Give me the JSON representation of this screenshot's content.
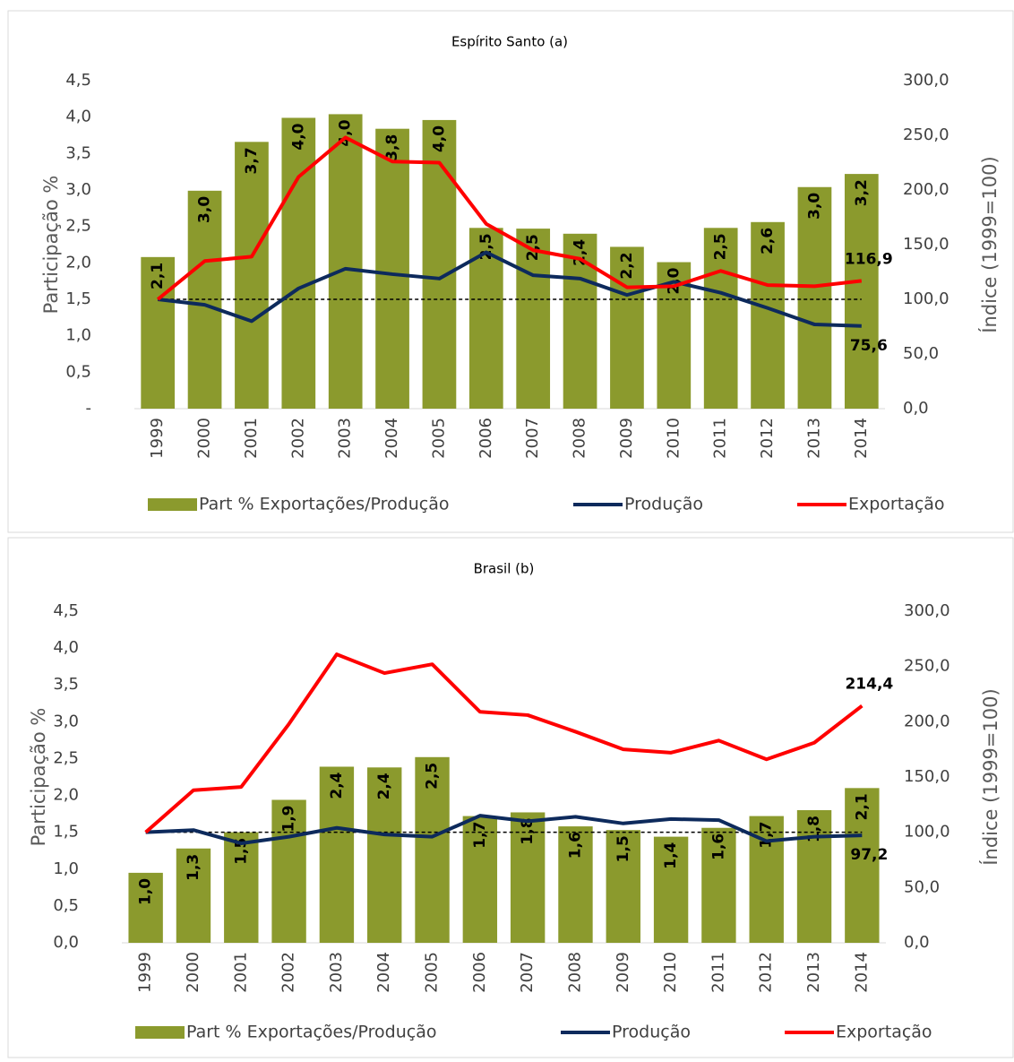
{
  "chart_data": [
    {
      "type": "bar_line",
      "title": "Espírito Santo (a)",
      "y_label": "Participação %",
      "y2_label": "Índice (1999=100)",
      "categories": [
        "1999",
        "2000",
        "2001",
        "2002",
        "2003",
        "2004",
        "2005",
        "2006",
        "2007",
        "2008",
        "2009",
        "2010",
        "2011",
        "2012",
        "2013",
        "2014"
      ],
      "series": [
        {
          "name": "Part % Exportações/Produção",
          "kind": "bar",
          "color": "#8b9a2d",
          "values": [
            2.08,
            2.99,
            3.66,
            3.99,
            4.04,
            3.84,
            3.96,
            2.48,
            2.47,
            2.4,
            2.22,
            2.01,
            2.48,
            2.56,
            3.04,
            3.22
          ],
          "value_labels": [
            "2,1",
            "3,0",
            "3,7",
            "4,0",
            "4,0",
            "3,8",
            "4,0",
            "2,5",
            "2,5",
            "2,4",
            "2,2",
            "2,0",
            "2,5",
            "2,6",
            "3,0",
            "3,2"
          ]
        },
        {
          "name": "Produção",
          "kind": "line",
          "axis": "y2",
          "color": "#0d2a5c",
          "values": [
            100,
            95,
            80,
            110,
            128,
            123,
            119,
            143,
            122,
            119,
            104,
            116,
            106,
            92,
            77,
            75.6
          ],
          "value_labels": [
            null,
            null,
            null,
            null,
            null,
            null,
            null,
            null,
            null,
            null,
            null,
            null,
            null,
            null,
            null,
            "75,6"
          ]
        },
        {
          "name": "Exportação",
          "kind": "line",
          "axis": "y2",
          "color": "#ff0000",
          "values": [
            100,
            135,
            139,
            212,
            248,
            226,
            225,
            169,
            145,
            137,
            111,
            112,
            126,
            113,
            112,
            116.9
          ],
          "value_labels": [
            null,
            null,
            null,
            null,
            null,
            null,
            null,
            null,
            null,
            null,
            null,
            null,
            null,
            null,
            null,
            "116,9"
          ]
        }
      ],
      "reference_line": {
        "axis": "y2",
        "value": 100,
        "style": "dashed"
      },
      "ylim": [
        0,
        4.5
      ],
      "yticks": [
        {
          "value": 0,
          "label": "-"
        },
        {
          "value": 0.5,
          "label": "0,5"
        },
        {
          "value": 1,
          "label": "1,0"
        },
        {
          "value": 1.5,
          "label": "1,5"
        },
        {
          "value": 2,
          "label": "2,0"
        },
        {
          "value": 2.5,
          "label": "2,5"
        },
        {
          "value": 3,
          "label": "3,0"
        },
        {
          "value": 3.5,
          "label": "3,5"
        },
        {
          "value": 4,
          "label": "4,0"
        },
        {
          "value": 4.5,
          "label": "4,5"
        }
      ],
      "y2lim": [
        0,
        300
      ],
      "y2ticks": [
        {
          "value": 0,
          "label": "0,0"
        },
        {
          "value": 50,
          "label": "50,0"
        },
        {
          "value": 100,
          "label": "100,0"
        },
        {
          "value": 150,
          "label": "150,0"
        },
        {
          "value": 200,
          "label": "200,0"
        },
        {
          "value": 250,
          "label": "250,0"
        },
        {
          "value": 300,
          "label": "300,0"
        }
      ],
      "legend": "bottom"
    },
    {
      "type": "bar_line",
      "title": "Brasil (b)",
      "y_label": "Participação %",
      "y2_label": "Índice (1999=100)",
      "categories": [
        "1999",
        "2000",
        "2001",
        "2002",
        "2003",
        "2004",
        "2005",
        "2006",
        "2007",
        "2008",
        "2009",
        "2010",
        "2011",
        "2012",
        "2013",
        "2014"
      ],
      "series": [
        {
          "name": "Part % Exportações/Produção",
          "kind": "bar",
          "color": "#8b9a2d",
          "values": [
            0.95,
            1.28,
            1.5,
            1.94,
            2.39,
            2.38,
            2.52,
            1.72,
            1.77,
            1.58,
            1.53,
            1.44,
            1.56,
            1.72,
            1.8,
            2.1
          ],
          "value_labels": [
            "1,0",
            "1,3",
            "1,5",
            "1,9",
            "2,4",
            "2,4",
            "2,5",
            "1,7",
            "1,8",
            "1,6",
            "1,5",
            "1,4",
            "1,6",
            "1,7",
            "1,8",
            "2,1"
          ]
        },
        {
          "name": "Produção",
          "kind": "line",
          "axis": "y2",
          "color": "#0d2a5c",
          "values": [
            100,
            102,
            90,
            96,
            104,
            98,
            96,
            115,
            110,
            114,
            108,
            112,
            111,
            92,
            96,
            97.2
          ],
          "value_labels": [
            null,
            null,
            null,
            null,
            null,
            null,
            null,
            null,
            null,
            null,
            null,
            null,
            null,
            null,
            null,
            "97,2"
          ]
        },
        {
          "name": "Exportação",
          "kind": "line",
          "axis": "y2",
          "color": "#ff0000",
          "values": [
            100,
            138,
            141,
            198,
            261,
            244,
            252,
            209,
            206,
            191,
            175,
            172,
            183,
            166,
            181,
            214.4
          ],
          "value_labels": [
            null,
            null,
            null,
            null,
            null,
            null,
            null,
            null,
            null,
            null,
            null,
            null,
            null,
            null,
            null,
            "214,4"
          ]
        }
      ],
      "reference_line": {
        "axis": "y2",
        "value": 100,
        "style": "dashed"
      },
      "ylim": [
        0,
        4.5
      ],
      "yticks": [
        {
          "value": 0,
          "label": "0,0"
        },
        {
          "value": 0.5,
          "label": "0,5"
        },
        {
          "value": 1,
          "label": "1,0"
        },
        {
          "value": 1.5,
          "label": "1,5"
        },
        {
          "value": 2,
          "label": "2,0"
        },
        {
          "value": 2.5,
          "label": "2,5"
        },
        {
          "value": 3,
          "label": "3,0"
        },
        {
          "value": 3.5,
          "label": "3,5"
        },
        {
          "value": 4,
          "label": "4,0"
        },
        {
          "value": 4.5,
          "label": "4,5"
        }
      ],
      "y2lim": [
        0,
        300
      ],
      "y2ticks": [
        {
          "value": 0,
          "label": "0,0"
        },
        {
          "value": 50,
          "label": "50,0"
        },
        {
          "value": 100,
          "label": "100,0"
        },
        {
          "value": 150,
          "label": "150,0"
        },
        {
          "value": 200,
          "label": "200,0"
        },
        {
          "value": 250,
          "label": "250,0"
        },
        {
          "value": 300,
          "label": "300,0"
        }
      ],
      "legend": "bottom"
    }
  ]
}
